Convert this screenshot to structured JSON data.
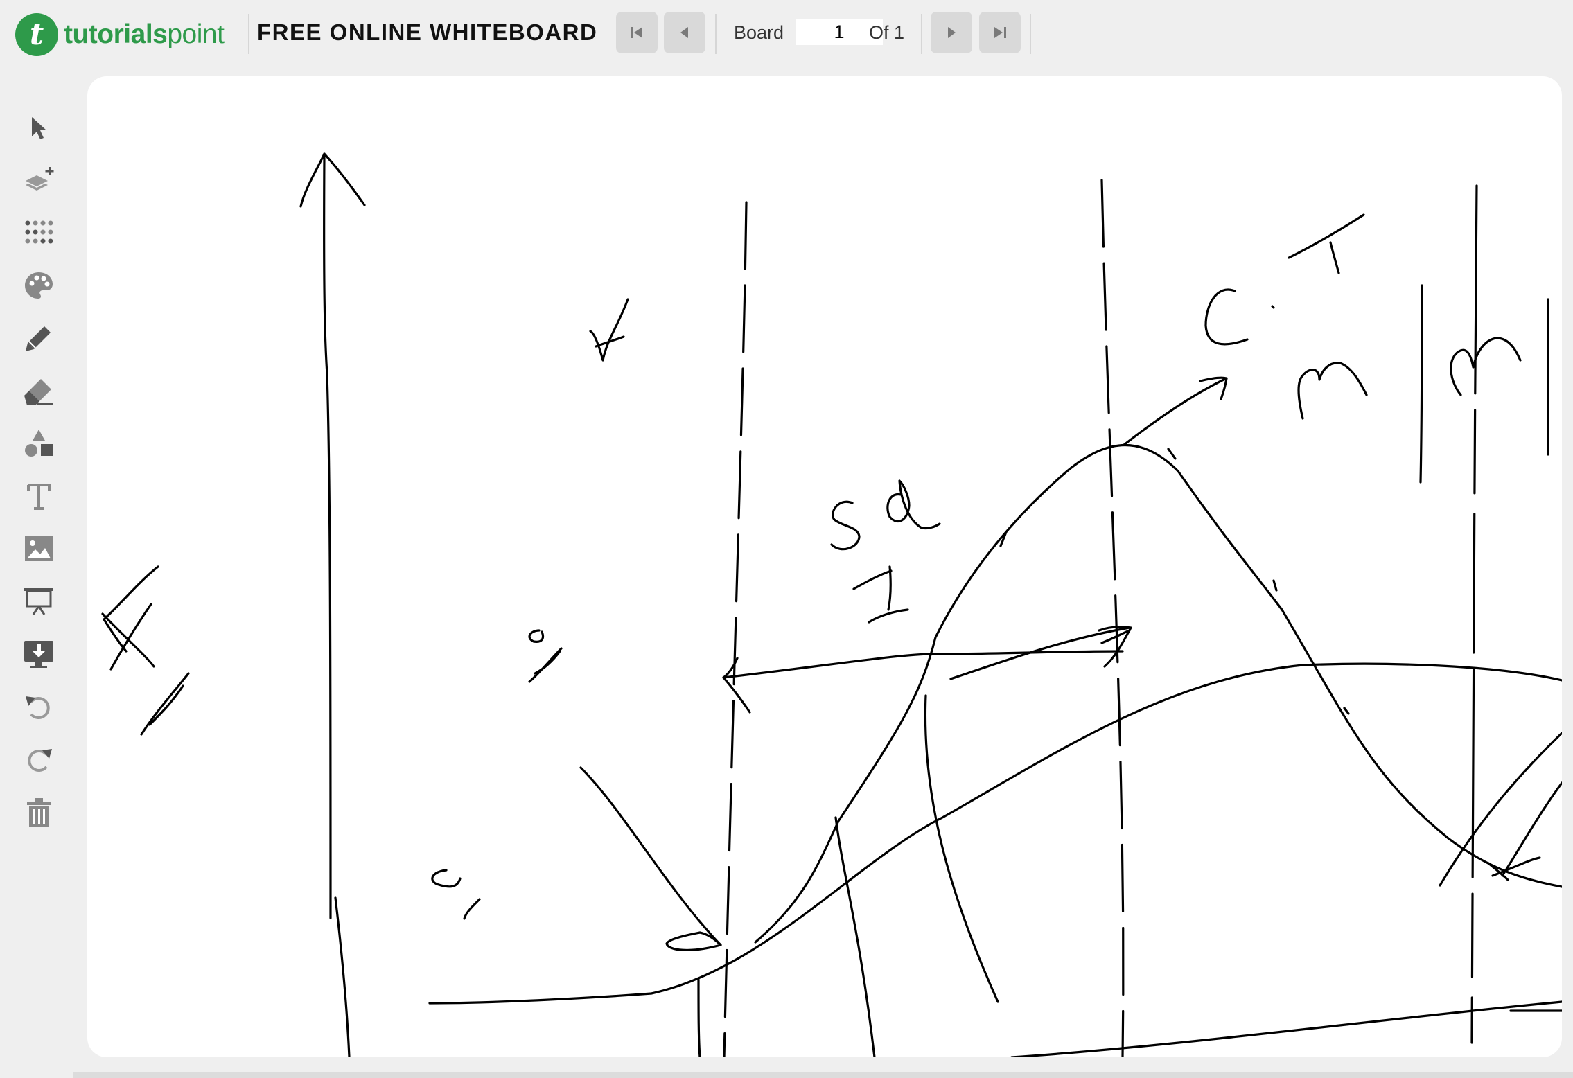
{
  "header": {
    "logo_text_bold": "tutorials",
    "logo_text_light": "point",
    "logo_glyph": "t",
    "app_title": "FREE ONLINE WHITEBOARD",
    "board_label": "Board",
    "page_current": "1",
    "page_total_label": "Of 1"
  },
  "nav_buttons": [
    "first-page-icon",
    "previous-page-icon",
    "next-page-icon",
    "last-page-icon"
  ],
  "toolbar": [
    "select-pointer-icon",
    "add-layer-icon",
    "dot-grid-icon",
    "color-palette-icon",
    "pencil-icon",
    "eraser-icon",
    "shapes-icon",
    "text-icon",
    "image-icon",
    "presentation-icon",
    "download-icon",
    "undo-icon",
    "redo-icon",
    "trash-icon"
  ],
  "colors": {
    "brand_green": "#2e9a4a",
    "background": "#efefef",
    "canvas": "#ffffff",
    "ink": "#000000",
    "icon_gray": "#888888"
  }
}
